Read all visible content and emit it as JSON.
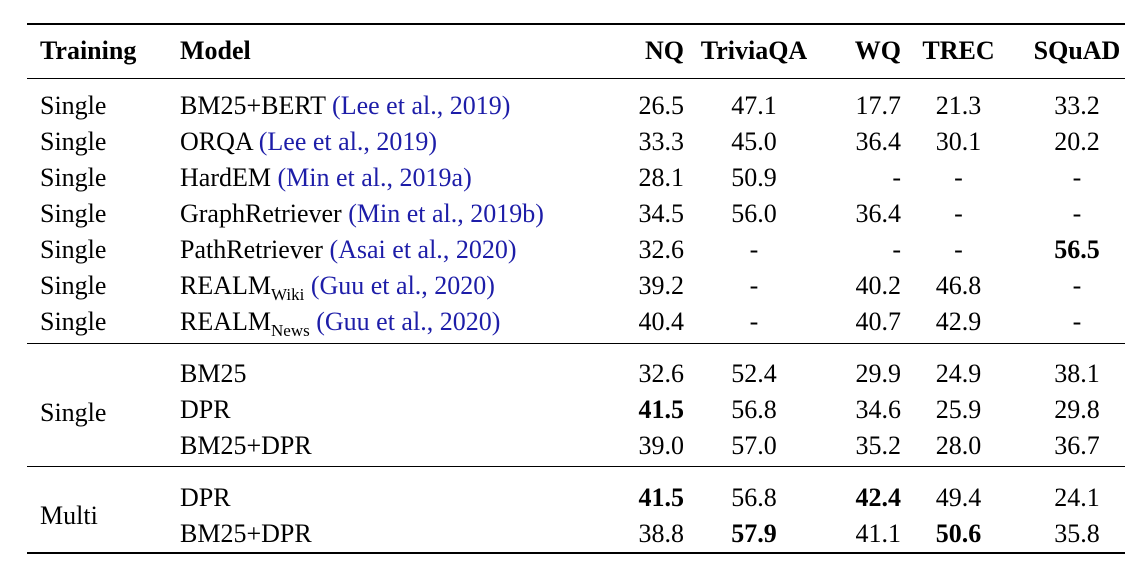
{
  "table": {
    "headers": [
      "Training",
      "Model",
      "NQ",
      "TriviaQA",
      "WQ",
      "TREC",
      "SQuAD"
    ],
    "group1": [
      {
        "training": "Single",
        "model": "BM25+BERT",
        "sub": "",
        "cite_pre": "(",
        "cite_a": "Lee et al.",
        "cite_sep": ", ",
        "cite_b": "2019",
        "cite_post": ")",
        "nq": "26.5",
        "tqa": "47.1",
        "wq": "17.7",
        "trec": "21.3",
        "squad": "33.2"
      },
      {
        "training": "Single",
        "model": "ORQA",
        "sub": "",
        "cite_pre": "(",
        "cite_a": "Lee et al.",
        "cite_sep": ", ",
        "cite_b": "2019",
        "cite_post": ")",
        "nq": "33.3",
        "tqa": "45.0",
        "wq": "36.4",
        "trec": "30.1",
        "squad": "20.2"
      },
      {
        "training": "Single",
        "model": "HardEM",
        "sub": "",
        "cite_pre": "(",
        "cite_a": "Min et al.",
        "cite_sep": ", ",
        "cite_b": "2019a",
        "cite_post": ")",
        "nq": "28.1",
        "tqa": "50.9",
        "wq": "-",
        "trec": "-",
        "squad": "-"
      },
      {
        "training": "Single",
        "model": "GraphRetriever",
        "sub": "",
        "cite_pre": "(",
        "cite_a": "Min et al.",
        "cite_sep": ", ",
        "cite_b": "2019b",
        "cite_post": ")",
        "nq": "34.5",
        "tqa": "56.0",
        "wq": "36.4",
        "trec": "-",
        "squad": "-"
      },
      {
        "training": "Single",
        "model": "PathRetriever",
        "sub": "",
        "cite_pre": "(",
        "cite_a": "Asai et al.",
        "cite_sep": ", ",
        "cite_b": "2020",
        "cite_post": ")",
        "nq": "32.6",
        "tqa": "-",
        "wq": "-",
        "trec": "-",
        "squad": "56.5"
      },
      {
        "training": "Single",
        "model": "REALM",
        "sub": "Wiki",
        "cite_pre": "(",
        "cite_a": "Guu et al.",
        "cite_sep": ", ",
        "cite_b": "2020",
        "cite_post": ")",
        "nq": "39.2",
        "tqa": "-",
        "wq": "40.2",
        "trec": "46.8",
        "squad": "-"
      },
      {
        "training": "Single",
        "model": "REALM",
        "sub": "News",
        "cite_pre": "(",
        "cite_a": "Guu et al.",
        "cite_sep": ", ",
        "cite_b": "2020",
        "cite_post": ")",
        "nq": "40.4",
        "tqa": "-",
        "wq": "40.7",
        "trec": "42.9",
        "squad": "-"
      }
    ],
    "group2": {
      "training": "Single",
      "rows": [
        {
          "model": "BM25",
          "nq": "32.6",
          "tqa": "52.4",
          "wq": "29.9",
          "trec": "24.9",
          "squad": "38.1"
        },
        {
          "model": "DPR",
          "nq": "41.5",
          "tqa": "56.8",
          "wq": "34.6",
          "trec": "25.9",
          "squad": "29.8"
        },
        {
          "model": "BM25+DPR",
          "nq": "39.0",
          "tqa": "57.0",
          "wq": "35.2",
          "trec": "28.0",
          "squad": "36.7"
        }
      ]
    },
    "group3": {
      "training": "Multi",
      "rows": [
        {
          "model": "DPR",
          "nq": "41.5",
          "tqa": "56.8",
          "wq": "42.4",
          "trec": "49.4",
          "squad": "24.1"
        },
        {
          "model": "BM25+DPR",
          "nq": "38.8",
          "tqa": "57.9",
          "wq": "41.1",
          "trec": "50.6",
          "squad": "35.8"
        }
      ]
    },
    "colors": {
      "citation": "#1d1da8",
      "text": "#000000"
    }
  }
}
